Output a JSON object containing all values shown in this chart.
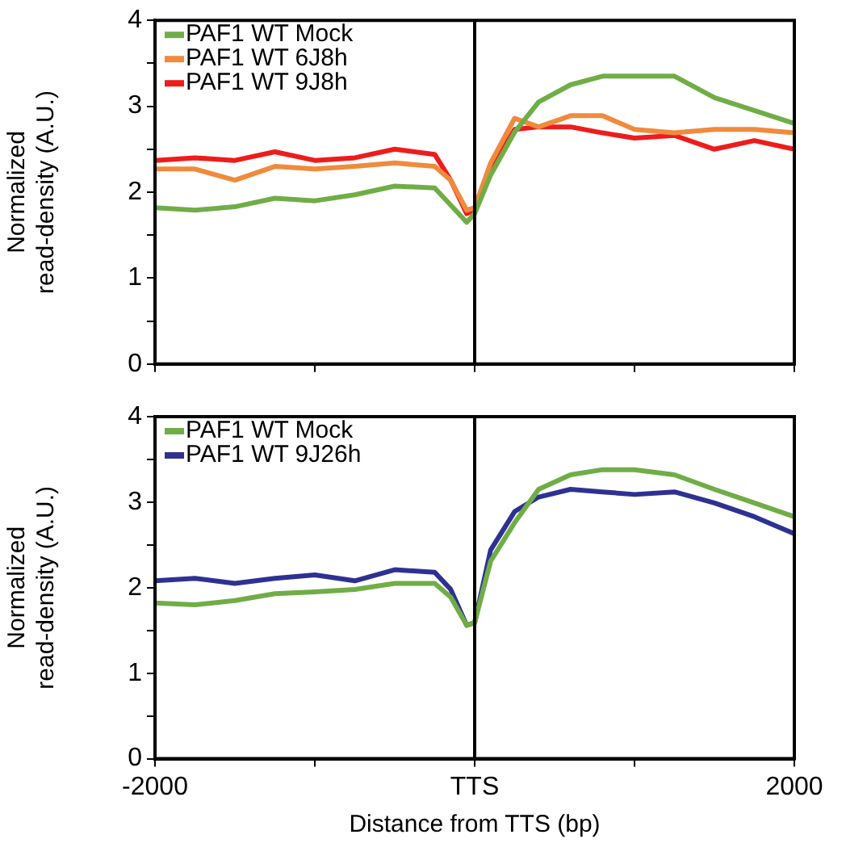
{
  "chart_data": [
    {
      "type": "line",
      "ylabel": "Normalized\nread-density (A.U.)",
      "x": [
        -2000,
        -1750,
        -1500,
        -1250,
        -1000,
        -750,
        -500,
        -250,
        -150,
        -50,
        0,
        100,
        250,
        400,
        600,
        800,
        1000,
        1250,
        1500,
        1750,
        2000
      ],
      "series": [
        {
          "name": "PAF1 WT Mock",
          "color": "#70ad47",
          "values": [
            1.82,
            1.79,
            1.83,
            1.93,
            1.9,
            1.97,
            2.07,
            2.05,
            1.85,
            1.65,
            1.75,
            2.2,
            2.7,
            3.05,
            3.25,
            3.35,
            3.35,
            3.35,
            3.1,
            2.95,
            2.8
          ]
        },
        {
          "name": "PAF1 WT 6J8h",
          "color": "#f08a3c",
          "values": [
            2.27,
            2.27,
            2.14,
            2.3,
            2.27,
            2.3,
            2.34,
            2.3,
            2.14,
            1.79,
            1.82,
            2.34,
            2.86,
            2.76,
            2.89,
            2.89,
            2.73,
            2.69,
            2.73,
            2.73,
            2.69
          ]
        },
        {
          "name": "PAF1 WT 9J8h",
          "color": "#ee1c1c",
          "values": [
            2.37,
            2.4,
            2.37,
            2.47,
            2.37,
            2.4,
            2.5,
            2.44,
            2.14,
            1.75,
            1.79,
            2.27,
            2.73,
            2.76,
            2.76,
            2.69,
            2.63,
            2.66,
            2.5,
            2.6,
            2.5
          ]
        }
      ],
      "xlim": [
        -2000,
        2000
      ],
      "xticks": [
        {
          "value": -2000,
          "label": null
        },
        {
          "value": -1000,
          "label": null
        },
        {
          "value": 0,
          "label": null
        },
        {
          "value": 1000,
          "label": null
        },
        {
          "value": 2000,
          "label": null
        }
      ],
      "ylim": [
        0,
        4
      ],
      "yticks": [
        0,
        {
          "value": 0.5,
          "label": null
        },
        1,
        {
          "value": 1.5,
          "label": null
        },
        2,
        {
          "value": 2.5,
          "label": null
        },
        3,
        {
          "value": 3.5,
          "label": null
        },
        4
      ],
      "ref_lines": [
        {
          "axis": "x",
          "value": 0,
          "color": "#000000"
        }
      ],
      "legend": "top left",
      "tick_labels": "y",
      "marker": "none",
      "line_style": "solid",
      "grid": false
    },
    {
      "type": "line",
      "xlabel": "Distance from TTS (bp)",
      "ylabel": "Normalized\nread-density (A.U.)",
      "x": [
        -2000,
        -1750,
        -1500,
        -1250,
        -1000,
        -750,
        -500,
        -250,
        -150,
        -50,
        0,
        100,
        250,
        400,
        600,
        800,
        1000,
        1250,
        1500,
        1750,
        2000
      ],
      "series": [
        {
          "name": "PAF1 WT Mock",
          "color": "#70ad47",
          "values": [
            1.82,
            1.8,
            1.85,
            1.93,
            1.95,
            1.98,
            2.05,
            2.05,
            1.89,
            1.56,
            1.59,
            2.31,
            2.76,
            3.15,
            3.32,
            3.38,
            3.38,
            3.32,
            3.15,
            2.99,
            2.83
          ]
        },
        {
          "name": "PAF1 WT 9J26h",
          "color": "#2e3192",
          "values": [
            2.08,
            2.11,
            2.05,
            2.11,
            2.15,
            2.08,
            2.21,
            2.18,
            1.98,
            1.56,
            1.59,
            2.44,
            2.89,
            3.06,
            3.15,
            3.12,
            3.09,
            3.12,
            2.99,
            2.83,
            2.63
          ]
        }
      ],
      "xlim": [
        -2000,
        2000
      ],
      "xticks": [
        -2000,
        {
          "value": -1000,
          "label": null
        },
        {
          "value": 0,
          "label": "TTS"
        },
        {
          "value": 1000,
          "label": null
        },
        2000
      ],
      "ylim": [
        0,
        4
      ],
      "yticks": [
        0,
        {
          "value": 0.5,
          "label": null
        },
        1,
        {
          "value": 1.5,
          "label": null
        },
        2,
        {
          "value": 2.5,
          "label": null
        },
        3,
        {
          "value": 3.5,
          "label": null
        },
        4
      ],
      "ref_lines": [
        {
          "axis": "x",
          "value": 0,
          "color": "#000000"
        }
      ],
      "legend": "top left",
      "marker": "none",
      "line_style": "solid",
      "grid": false
    }
  ]
}
